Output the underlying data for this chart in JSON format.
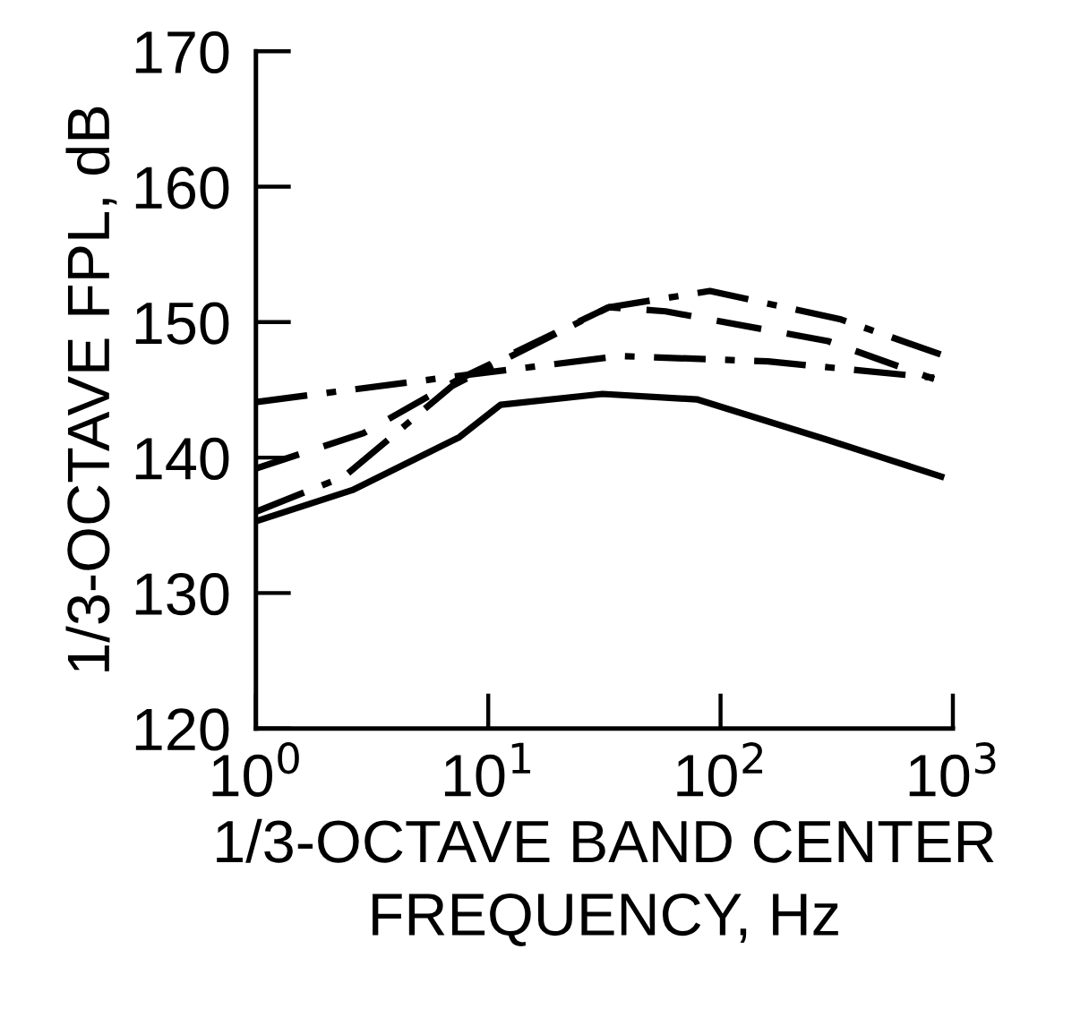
{
  "chart_data": {
    "type": "line",
    "xlabel": "1/3-OCTAVE BAND CENTER\nFREQUENCY, Hz",
    "ylabel": "1/3-OCTAVE FPL, dB",
    "log": "x",
    "xlim": [
      1,
      1000
    ],
    "xticks": [
      {
        "value": 1,
        "label": "10$^{0}$"
      },
      {
        "value": 10,
        "label": "10$^{1}$"
      },
      {
        "value": 100,
        "label": "10$^{2}$"
      },
      {
        "value": 1000,
        "label": "10$^{3}$"
      }
    ],
    "ylim": [
      120,
      170
    ],
    "yticks": [
      120,
      130,
      140,
      150,
      160,
      170
    ],
    "grid": false,
    "legend": false,
    "series": [
      {
        "color": "#000000",
        "line_style": "solid",
        "x": [
          1,
          2.6,
          7.5,
          11.3,
          31,
          79,
          290,
          890
        ],
        "values": [
          135.3,
          137.6,
          141.5,
          143.9,
          144.7,
          144.3,
          141.3,
          138.6
        ]
      },
      {
        "color": "#000000",
        "line_style": "dashdot",
        "x": [
          1,
          2.4,
          7,
          33,
          90,
          330,
          890
        ],
        "values": [
          136,
          138.6,
          145.3,
          151.1,
          152.3,
          150.2,
          147.6
        ]
      },
      {
        "color": "#000000",
        "line_style": "dashed",
        "x": [
          1,
          2.9,
          7.5,
          33,
          58,
          290,
          830
        ],
        "values": [
          139.2,
          141.8,
          145.8,
          151.1,
          150.8,
          148.6,
          145.8
        ]
      },
      {
        "color": "#000000",
        "line_style": "dashdot",
        "x": [
          1,
          6.5,
          37,
          160,
          830
        ],
        "values": [
          144.1,
          145.9,
          147.5,
          147.1,
          145.9
        ]
      }
    ]
  }
}
